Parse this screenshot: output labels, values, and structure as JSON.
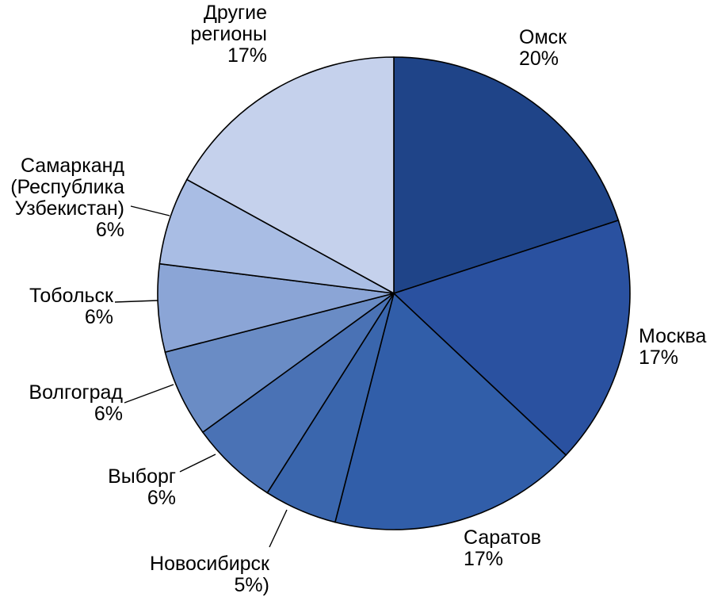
{
  "chart_data": {
    "type": "pie",
    "slices": [
      {
        "label_lines": [
          "Омск"
        ],
        "value_text": "20%",
        "value": 20,
        "color": "#1f4488"
      },
      {
        "label_lines": [
          "Москва"
        ],
        "value_text": "17%",
        "value": 17,
        "color": "#2a51a0"
      },
      {
        "label_lines": [
          "Саратов"
        ],
        "value_text": "17%",
        "value": 17,
        "color": "#315ea9"
      },
      {
        "label_lines": [
          "Новосибирск"
        ],
        "value_text": "5%)",
        "value": 5,
        "color": "#3a66ad"
      },
      {
        "label_lines": [
          "Выборг"
        ],
        "value_text": "6%",
        "value": 6,
        "color": "#4a72b5"
      },
      {
        "label_lines": [
          "Волгоград"
        ],
        "value_text": "6%",
        "value": 6,
        "color": "#6a8cc5"
      },
      {
        "label_lines": [
          "Тобольск"
        ],
        "value_text": "6%",
        "value": 6,
        "color": "#8ba5d6"
      },
      {
        "label_lines": [
          "Самарканд",
          "(Республика",
          "Узбекистан)"
        ],
        "value_text": "6%",
        "value": 6,
        "color": "#a9bde4"
      },
      {
        "label_lines": [
          "Другие",
          "регионы"
        ],
        "value_text": "17%",
        "value": 17,
        "color": "#c5d1ec"
      }
    ]
  }
}
